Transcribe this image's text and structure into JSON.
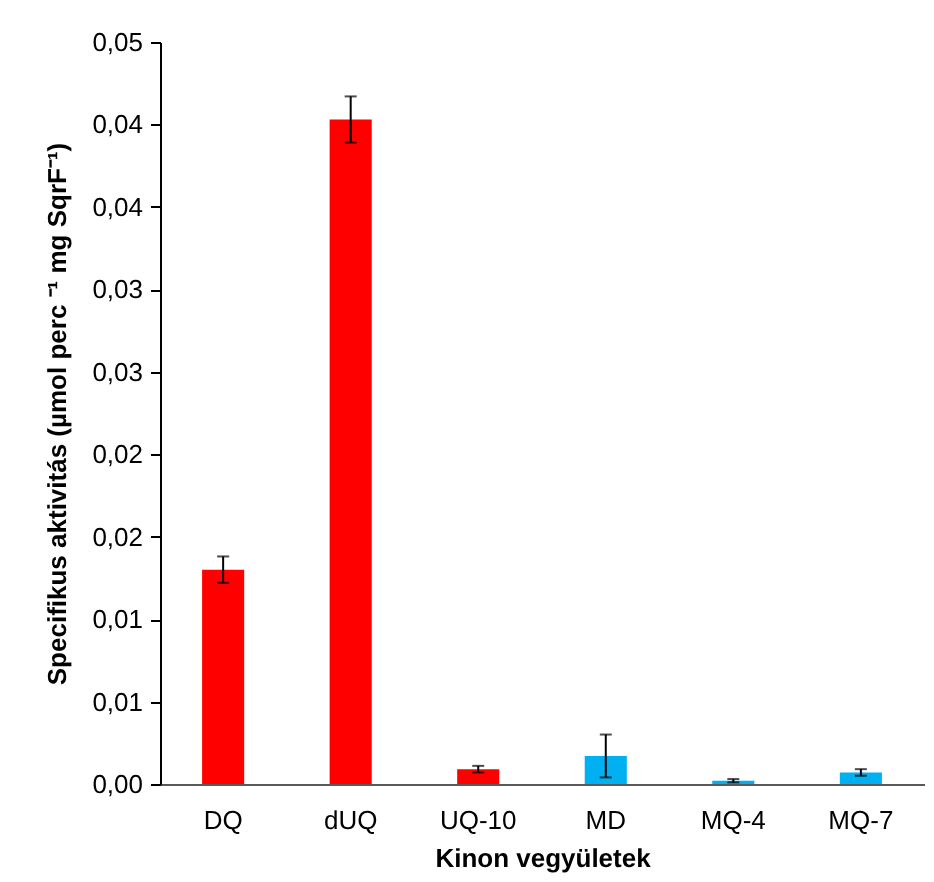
{
  "chart_data": {
    "type": "bar",
    "xlabel": "Kinon vegyületek",
    "ylabel": "Specifikus aktivitás (µmol perc ⁻¹ mg SqrF⁻¹)",
    "categories": [
      "DQ",
      "dUQ",
      "UQ-10",
      "MD",
      "MQ-4",
      "MQ-7"
    ],
    "values": [
      0.013,
      0.0403,
      0.0009,
      0.0017,
      0.0002,
      0.0007
    ],
    "errors": [
      0.0008,
      0.0014,
      0.0002,
      0.0013,
      0.0001,
      0.0002
    ],
    "colors": [
      "#ff0000",
      "#ff0000",
      "#ff0000",
      "#00b0f0",
      "#00b0f0",
      "#00b0f0"
    ],
    "ylim": [
      0,
      0.045
    ],
    "yticks": [
      {
        "value": 0,
        "label": "0,00"
      },
      {
        "value": 0.005,
        "label": "0,01"
      },
      {
        "value": 0.01,
        "label": "0,01"
      },
      {
        "value": 0.015,
        "label": "0,02"
      },
      {
        "value": 0.02,
        "label": "0,02"
      },
      {
        "value": 0.025,
        "label": "0,03"
      },
      {
        "value": 0.03,
        "label": "0,03"
      },
      {
        "value": 0.035,
        "label": "0,04"
      },
      {
        "value": 0.04,
        "label": "0,04"
      },
      {
        "value": 0.045,
        "label": "0,05"
      }
    ],
    "grid": false,
    "legend": false
  }
}
